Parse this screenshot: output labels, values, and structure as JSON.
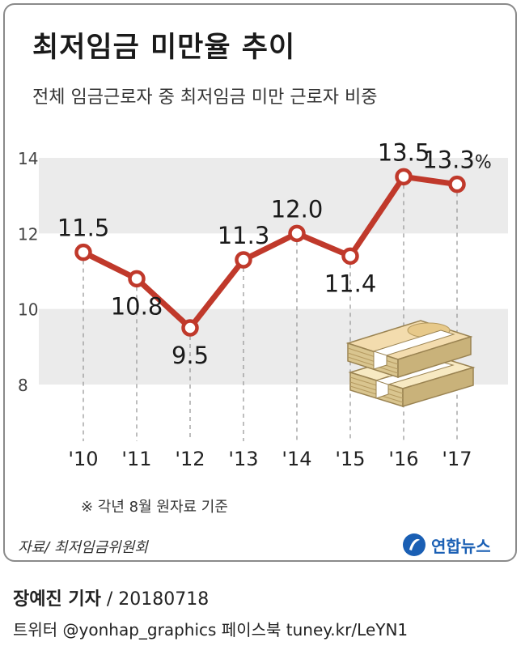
{
  "title": "최저임금 미만율 추이",
  "subtitle": "전체 임금근로자 중 최저임금 미만 근로자 비중",
  "note": "※ 각년 8월 원자료 기준",
  "source": "자료/ 최저임금위원회",
  "logo": {
    "text": "연합뉴스",
    "icon": "yonhap-logo-icon",
    "color": "#1a5fb4"
  },
  "reporter": {
    "name": "장예진 기자",
    "date": "/ 20180718"
  },
  "social": "트위터 @yonhap_graphics  페이스북 tuney.kr/LeYN1",
  "colors": {
    "line": "#c0392b",
    "band": "#ebebeb",
    "text": "#222222"
  },
  "chart_data": {
    "type": "line",
    "title": "최저임금 미만율 추이",
    "subtitle": "전체 임금근로자 중 최저임금 미만 근로자 비중",
    "categories": [
      "'10",
      "'11",
      "'12",
      "'13",
      "'14",
      "'15",
      "'16",
      "'17"
    ],
    "values": [
      11.5,
      10.8,
      9.5,
      11.3,
      12.0,
      11.4,
      13.5,
      13.3
    ],
    "labels": [
      "11.5",
      "10.8",
      "9.5",
      "11.3",
      "12.0",
      "11.4",
      "13.5",
      "13.3"
    ],
    "label_side": [
      "above",
      "below",
      "below",
      "above",
      "above",
      "below",
      "above",
      "above"
    ],
    "unit": "%",
    "yticks": [
      8,
      10,
      12,
      14
    ],
    "ylim": [
      8,
      14
    ],
    "bands": [
      [
        8,
        10
      ],
      [
        12,
        14
      ]
    ],
    "xlabel": "",
    "ylabel": "",
    "grid": false,
    "legend": "none"
  }
}
